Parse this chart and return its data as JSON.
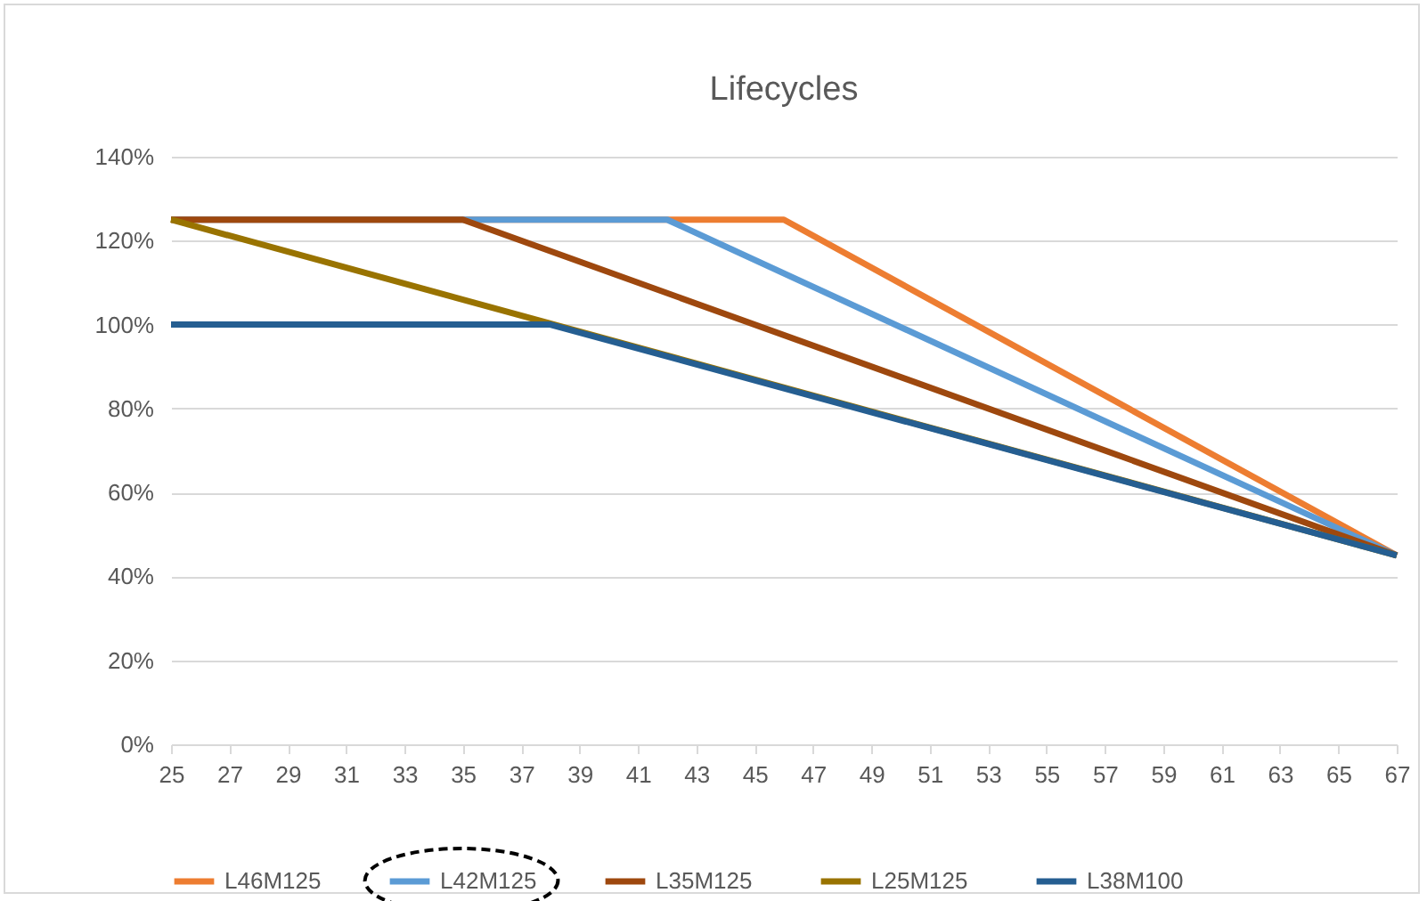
{
  "chart_data": {
    "type": "line",
    "title": "Lifecycles",
    "xlim": [
      25,
      67
    ],
    "xticks": [
      25,
      27,
      29,
      31,
      33,
      35,
      37,
      39,
      41,
      43,
      45,
      47,
      49,
      51,
      53,
      55,
      57,
      59,
      61,
      63,
      65,
      67
    ],
    "ylim": [
      0,
      140
    ],
    "yticks": [
      {
        "value": 0,
        "label": "0%"
      },
      {
        "value": 20,
        "label": "20%"
      },
      {
        "value": 40,
        "label": "40%"
      },
      {
        "value": 60,
        "label": "60%"
      },
      {
        "value": 80,
        "label": "80%"
      },
      {
        "value": 100,
        "label": "100%"
      },
      {
        "value": 120,
        "label": "120%"
      },
      {
        "value": 140,
        "label": "140%"
      }
    ],
    "grid": "y",
    "legend": "bottom",
    "marker": "none",
    "line_style": "solid",
    "series": [
      {
        "name": "L46M125",
        "color": "#ed7d31",
        "x": [
          25,
          46,
          67
        ],
        "values": [
          125,
          125,
          45
        ]
      },
      {
        "name": "L42M125",
        "color": "#5b9bd5",
        "x": [
          25,
          42,
          67
        ],
        "values": [
          125,
          125,
          45
        ]
      },
      {
        "name": "L35M125",
        "color": "#9e480e",
        "x": [
          25,
          35,
          67
        ],
        "values": [
          125,
          125,
          45
        ]
      },
      {
        "name": "L25M125",
        "color": "#997300",
        "x": [
          25,
          67
        ],
        "values": [
          125,
          45
        ]
      },
      {
        "name": "L38M100",
        "color": "#255e91",
        "x": [
          25,
          38,
          67
        ],
        "values": [
          100,
          100,
          45
        ]
      }
    ]
  }
}
